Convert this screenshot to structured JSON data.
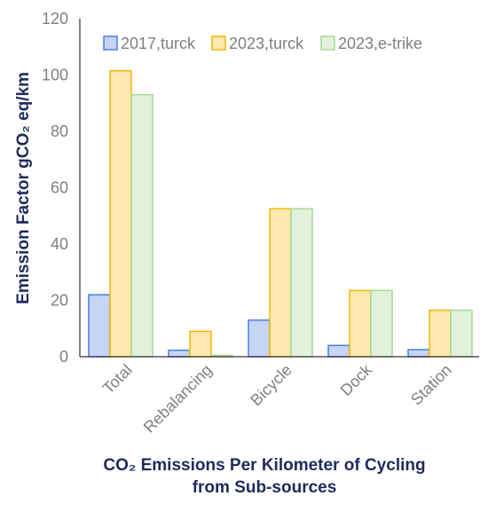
{
  "chart_data": {
    "type": "bar",
    "title": "",
    "xlabel_lines": [
      "CO₂ Emissions Per Kilometer of Cycling",
      "from Sub-sources"
    ],
    "ylabel": "Emission Factor gCO₂ eq/km",
    "categories": [
      "Total",
      "Rebalancing",
      "Bicycle",
      "Dock",
      "Station"
    ],
    "ylim": [
      0,
      120
    ],
    "yticks": [
      0,
      20,
      40,
      60,
      80,
      100,
      120
    ],
    "grid": false,
    "legend_position": "top",
    "series": [
      {
        "name": "2017,turck",
        "values": [
          22,
          2.3,
          13,
          4,
          2.5
        ],
        "fill": "#c6d5f5",
        "stroke": "#4a7fe0"
      },
      {
        "name": "2023,turck",
        "values": [
          101.5,
          9,
          52.5,
          23.5,
          16.5
        ],
        "fill": "#fde9b0",
        "stroke": "#f2b705"
      },
      {
        "name": "2023,e-trike",
        "values": [
          93,
          0.5,
          52.5,
          23.5,
          16.5
        ],
        "fill": "#e3f2dc",
        "stroke": "#a8d890"
      }
    ]
  }
}
